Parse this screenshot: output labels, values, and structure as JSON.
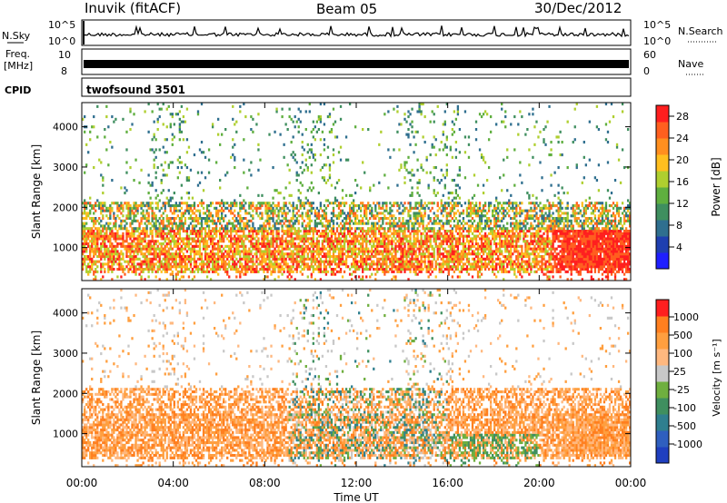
{
  "header": {
    "station": "Inuvik (fitACF)",
    "beam": "Beam 05",
    "date": "30/Dec/2012"
  },
  "top_panels": {
    "nsky_label": "N.Sky",
    "nsky_ticks": [
      "10^5",
      "10^0"
    ],
    "nsearch_label": "N.Search",
    "nsearch_ticks": [
      "10^5",
      "10^0"
    ],
    "freq_label_1": "Freq.",
    "freq_label_2": "[MHz]",
    "freq_ticks": [
      "10",
      "8"
    ],
    "nave_label": "Nave",
    "nave_ticks": [
      "60",
      "0"
    ],
    "cpid_label": "CPID",
    "cpid_value": "twofsound 3501"
  },
  "colors": {
    "power": [
      "#1f1fff",
      "#1f3fb0",
      "#2f6f8f",
      "#3f8f5f",
      "#5faf3f",
      "#afcf2f",
      "#ffbf1f",
      "#ff8f1f",
      "#ff5f1f",
      "#ff1f1f"
    ],
    "velocity": [
      "#1f3fbf",
      "#2f5fbf",
      "#2f7f8f",
      "#3f8f5f",
      "#6faf3f",
      "#c8c8c8",
      "#ffb87f",
      "#ff9f3f",
      "#ff7f1f",
      "#ff1f1f"
    ]
  },
  "chart_data": [
    {
      "type": "heatmap",
      "name": "power",
      "xlabel": "Time UT",
      "ylabel": "Slant Range [km]",
      "x_ticks": [
        "00:00",
        "04:00",
        "08:00",
        "12:00",
        "16:00",
        "20:00",
        "00:00"
      ],
      "y_ticks": [
        1000,
        2000,
        3000,
        4000
      ],
      "xlim": [
        0,
        24
      ],
      "ylim": [
        180,
        4600
      ],
      "colorbar_label": "Power [dB]",
      "colorbar_ticks": [
        4,
        8,
        12,
        16,
        20,
        24,
        28
      ],
      "colorbar_range": [
        0,
        30
      ]
    },
    {
      "type": "heatmap",
      "name": "velocity",
      "xlabel": "Time UT",
      "ylabel": "Slant Range [km]",
      "x_ticks": [
        "00:00",
        "04:00",
        "08:00",
        "12:00",
        "16:00",
        "20:00",
        "00:00"
      ],
      "y_ticks": [
        1000,
        2000,
        3000,
        4000
      ],
      "xlim": [
        0,
        24
      ],
      "ylim": [
        180,
        4600
      ],
      "colorbar_label": "Velocity [m s^-1]",
      "colorbar_ticks": [
        "1000",
        "500",
        "100",
        "25",
        "-25",
        "-100",
        "-500",
        "-1000"
      ]
    }
  ]
}
